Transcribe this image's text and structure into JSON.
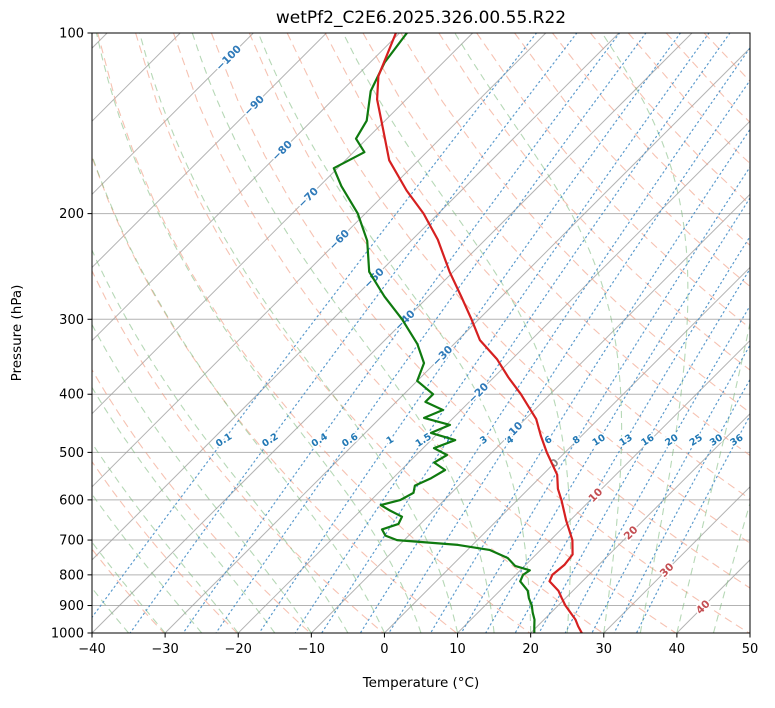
{
  "chart_data": {
    "type": "line",
    "chart_kind": "skew-t-log-p-sounding",
    "title": "wetPf2_C2E6.2025.326.00.55.R22",
    "xlabel": "Temperature (°C)",
    "ylabel": "Pressure (hPa)",
    "xlim": [
      -40,
      50
    ],
    "pressure_lim": [
      100,
      1000
    ],
    "x_ticks": [
      -40,
      -30,
      -20,
      -10,
      0,
      10,
      20,
      30,
      40,
      50
    ],
    "y_ticks": [
      100,
      200,
      300,
      400,
      500,
      600,
      700,
      800,
      900,
      1000
    ],
    "colors": {
      "grid": "#9a9a9a",
      "isotherm": "#9a9a9a",
      "dry_adiabat": "#f0997f",
      "moist_adiabat": "#7ab87a",
      "mixing_ratio": "#4a90c8",
      "temperature": "#d62020",
      "dewpoint": "#0f7a0f",
      "border": "#000000",
      "isotherm_label_negative": "#2f7ab9",
      "isotherm_label_zero": "#8a8a8a",
      "isotherm_label_positive": "#c44e52",
      "mixing_label": "#1f77b4"
    },
    "series": [
      {
        "name": "temperature",
        "units": {
          "pressure": "hPa",
          "value": "degC"
        },
        "points": [
          [
            100,
            -80.5
          ],
          [
            118,
            -77
          ],
          [
            129,
            -74
          ],
          [
            145,
            -69
          ],
          [
            163,
            -64
          ],
          [
            183,
            -57.5
          ],
          [
            200,
            -52
          ],
          [
            221,
            -46.5
          ],
          [
            250,
            -40.5
          ],
          [
            275,
            -35.5
          ],
          [
            300,
            -31
          ],
          [
            325,
            -27
          ],
          [
            350,
            -22
          ],
          [
            375,
            -18
          ],
          [
            400,
            -14
          ],
          [
            440,
            -8.5
          ],
          [
            470,
            -5.5
          ],
          [
            500,
            -2.5
          ],
          [
            545,
            2
          ],
          [
            575,
            4
          ],
          [
            600,
            6
          ],
          [
            650,
            9.5
          ],
          [
            700,
            13
          ],
          [
            740,
            15
          ],
          [
            770,
            15.3
          ],
          [
            800,
            15
          ],
          [
            820,
            15.5
          ],
          [
            850,
            18
          ],
          [
            875,
            19.5
          ],
          [
            900,
            21
          ],
          [
            950,
            24.3
          ],
          [
            975,
            25.6
          ],
          [
            1000,
            27
          ]
        ]
      },
      {
        "name": "dewpoint",
        "units": {
          "pressure": "hPa",
          "value": "degC"
        },
        "points": [
          [
            100,
            -79
          ],
          [
            112,
            -78
          ],
          [
            125,
            -76
          ],
          [
            140,
            -72.5
          ],
          [
            150,
            -71.5
          ],
          [
            158,
            -68.5
          ],
          [
            168,
            -70.5
          ],
          [
            180,
            -67
          ],
          [
            200,
            -61
          ],
          [
            222,
            -56
          ],
          [
            250,
            -51.5
          ],
          [
            275,
            -46
          ],
          [
            300,
            -40.5
          ],
          [
            330,
            -35
          ],
          [
            355,
            -31.5
          ],
          [
            380,
            -30
          ],
          [
            400,
            -26
          ],
          [
            412,
            -26
          ],
          [
            425,
            -22.5
          ],
          [
            438,
            -24
          ],
          [
            450,
            -19.5
          ],
          [
            464,
            -21
          ],
          [
            477,
            -16.7
          ],
          [
            492,
            -18.5
          ],
          [
            505,
            -15.8
          ],
          [
            520,
            -16.5
          ],
          [
            535,
            -14
          ],
          [
            552,
            -14.8
          ],
          [
            568,
            -16
          ],
          [
            584,
            -15.2
          ],
          [
            600,
            -16
          ],
          [
            612,
            -18
          ],
          [
            625,
            -16
          ],
          [
            640,
            -13.5
          ],
          [
            658,
            -13
          ],
          [
            672,
            -14.5
          ],
          [
            688,
            -13.2
          ],
          [
            700,
            -11
          ],
          [
            713,
            -2
          ],
          [
            727,
            3
          ],
          [
            750,
            6.6
          ],
          [
            773,
            8.7
          ],
          [
            786,
            11.3
          ],
          [
            800,
            11
          ],
          [
            820,
            11.5
          ],
          [
            850,
            13.8
          ],
          [
            875,
            15
          ],
          [
            900,
            16.4
          ],
          [
            925,
            17.5
          ],
          [
            950,
            18.7
          ],
          [
            975,
            19.6
          ],
          [
            1000,
            20.5
          ]
        ]
      }
    ],
    "isotherms": {
      "t_start_c": -120,
      "t_end_c": 50,
      "t_step_c": 10
    },
    "isotherm_labels": [
      {
        "t": -100,
        "p": 110
      },
      {
        "t": -90,
        "p": 132
      },
      {
        "t": -80,
        "p": 157
      },
      {
        "t": -70,
        "p": 188
      },
      {
        "t": -60,
        "p": 221
      },
      {
        "t": -50,
        "p": 256
      },
      {
        "t": -40,
        "p": 301
      },
      {
        "t": -30,
        "p": 345
      },
      {
        "t": -20,
        "p": 398
      },
      {
        "t": -10,
        "p": 462
      },
      {
        "t": 0,
        "p": 521
      },
      {
        "t": 10,
        "p": 589
      },
      {
        "t": 20,
        "p": 681
      },
      {
        "t": 30,
        "p": 785
      },
      {
        "t": 40,
        "p": 905
      }
    ],
    "dry_adiabats": {
      "theta_k_start": 233,
      "theta_k_end": 453,
      "theta_k_step": 10
    },
    "moist_adiabats": {
      "t_start_c": -40,
      "t_end_c": 50,
      "t_step_c": 5
    },
    "mixing_ratio": {
      "values_g_kg": [
        0.1,
        0.2,
        0.4,
        0.6,
        1,
        1.5,
        2,
        3,
        4,
        6,
        8,
        10,
        13,
        16,
        20,
        25,
        30,
        36
      ],
      "label_pressure_hpa": 477
    }
  }
}
